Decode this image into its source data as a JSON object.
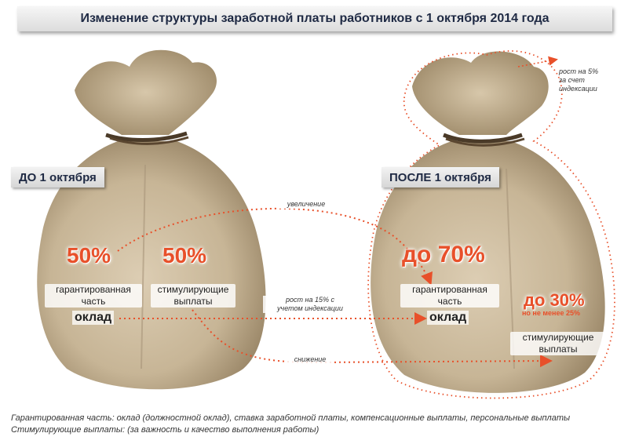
{
  "title": "Изменение структуры заработной платы работников с 1 октября 2014 года",
  "before": {
    "tag": "ДО 1 октября",
    "guaranteed": {
      "percent": "50%",
      "label_line1": "гарантированная",
      "label_line2": "часть",
      "label_main": "оклад"
    },
    "incentive": {
      "percent": "50%",
      "label_line1": "стимулирующие",
      "label_line2": "выплаты"
    }
  },
  "after": {
    "tag": "ПОСЛЕ 1 октября",
    "guaranteed": {
      "percent": "до 70%",
      "label_line1": "гарантированная",
      "label_line2": "часть",
      "label_main": "оклад"
    },
    "incentive": {
      "percent": "до 30%",
      "note": "но не менее 25%",
      "label_line1": "стимулирующие",
      "label_line2": "выплаты"
    }
  },
  "arrows": {
    "increase": "увеличение",
    "growth_line1": "рост на 15% с",
    "growth_line2": "учетом индексации",
    "decrease": "снижение",
    "indexation_line1": "рост на 5%",
    "indexation_line2": "за счет",
    "indexation_line3": "индексации"
  },
  "footnotes": {
    "line1": "Гарантированная часть: оклад (должностной оклад), ставка заработной платы, компенсационные выплаты, персональные выплаты",
    "line2": "Стимулирующие выплаты: (за важность и качество выполнения работы)"
  },
  "colors": {
    "accent": "#e8502a",
    "title_text": "#1f2a44",
    "bag": "#c9b89c"
  }
}
